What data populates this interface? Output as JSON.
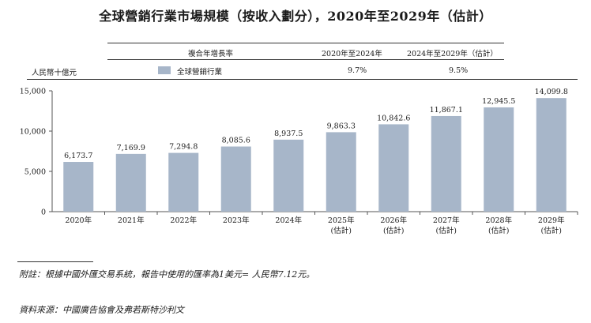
{
  "title": "全球營銷行業市場規模（按收入劃分），2020年至2029年（估計）",
  "table": {
    "cagr_header": "複合年增長率",
    "period1": "2020年至2024年",
    "period2": "2024年至2029年（估計）",
    "unit": "人民幣十億元",
    "series_label": "全球營銷行業",
    "cagr1": "9.7%",
    "cagr2": "9.5%"
  },
  "chart_data": {
    "type": "bar",
    "categories": [
      "2020年",
      "2021年",
      "2022年",
      "2023年",
      "2024年",
      "2025年",
      "2026年",
      "2027年",
      "2028年",
      "2029年"
    ],
    "sublabels": [
      "",
      "",
      "",
      "",
      "",
      "(估計)",
      "(估計)",
      "(估計)",
      "(估計)",
      "(估計)"
    ],
    "values": [
      6173.7,
      7169.9,
      7294.8,
      8085.6,
      8937.5,
      9863.3,
      10842.6,
      11867.1,
      12945.5,
      14099.8
    ],
    "value_labels": [
      "6,173.7",
      "7,169.9",
      "7,294.8",
      "8,085.6",
      "8,937.5",
      "9,863.3",
      "10,842.6",
      "11,867.1",
      "12,945.5",
      "14,099.8"
    ],
    "series_name": "全球營銷行業",
    "ylabel": "人民幣十億元",
    "ylim": [
      0,
      15000
    ],
    "yticks": [
      0,
      5000,
      10000,
      15000
    ],
    "ytick_labels": [
      "0",
      "5,000",
      "10,000",
      "15,000"
    ],
    "bar_color": "#a7b6c9"
  },
  "notes": {
    "note": "附註：根據中國外匯交易系統，報告中使用的匯率為1美元= 人民幣7.12元。",
    "source": "資料來源：中國廣告協會及弗若斯特沙利文"
  }
}
